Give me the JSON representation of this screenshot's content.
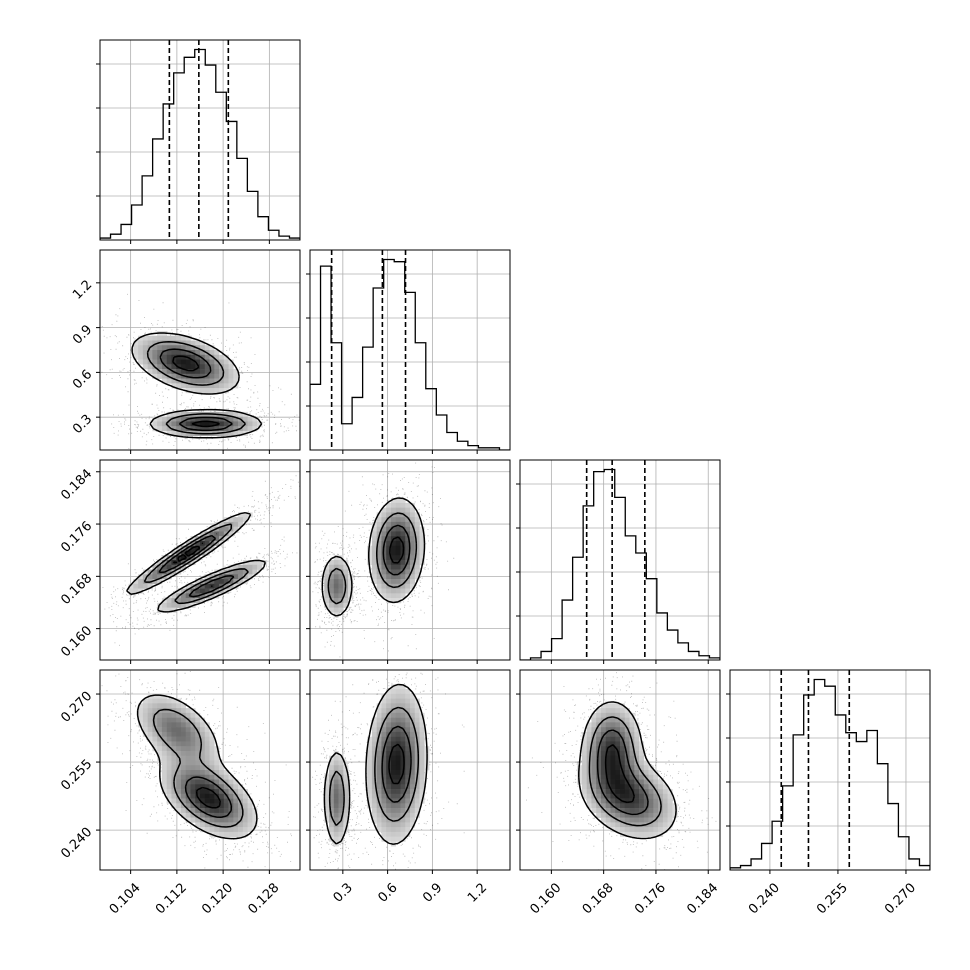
{
  "chart_data": {
    "type": "corner",
    "parameters": [
      {
        "ticks": [
          "0.104",
          "0.112",
          "0.120",
          "0.128"
        ],
        "tick_values": [
          0.104,
          0.112,
          0.12,
          0.128
        ],
        "range": [
          0.0987,
          0.1333
        ]
      },
      {
        "ticks": [
          "0.3",
          "0.6",
          "0.9",
          "1.2"
        ],
        "tick_values": [
          0.3,
          0.6,
          0.9,
          1.2
        ],
        "range": [
          0.08,
          1.42
        ]
      },
      {
        "ticks": [
          "0.160",
          "0.168",
          "0.176",
          "0.184"
        ],
        "tick_values": [
          0.16,
          0.168,
          0.176,
          0.184
        ],
        "range": [
          0.1552,
          0.1858
        ]
      },
      {
        "ticks": [
          "0.240",
          "0.255",
          "0.270"
        ],
        "tick_values": [
          0.24,
          0.255,
          0.27
        ],
        "range": [
          0.2312,
          0.2753
        ]
      }
    ],
    "quantiles": [
      [
        0.1107,
        0.1158,
        0.1209
      ],
      [
        0.225,
        0.565,
        0.72
      ],
      [
        0.1654,
        0.1693,
        0.1743
      ],
      [
        0.2425,
        0.2485,
        0.2575
      ]
    ],
    "histograms": [
      [
        1,
        3,
        8,
        18,
        33,
        52,
        70,
        86,
        94,
        98,
        90,
        76,
        61,
        42,
        25,
        12,
        5,
        2,
        1
      ],
      [
        30,
        84,
        49,
        12,
        24,
        47,
        74,
        87,
        86,
        72,
        49,
        28,
        16,
        8,
        4,
        2,
        1,
        1,
        0
      ],
      [
        0,
        1,
        4,
        10,
        28,
        48,
        72,
        88,
        89,
        76,
        58,
        50,
        38,
        22,
        14,
        8,
        4,
        2,
        1
      ],
      [
        1,
        2,
        5,
        12,
        22,
        38,
        61,
        79,
        86,
        83,
        70,
        62,
        58,
        63,
        48,
        30,
        15,
        5,
        2
      ]
    ],
    "blobs": {
      "1,0": [
        {
          "cx": 0.1135,
          "cy": 0.66,
          "sx": 0.005,
          "sy": 0.11,
          "r": -0.45,
          "w": 0.6
        },
        {
          "cx": 0.117,
          "cy": 0.255,
          "sx": 0.0052,
          "sy": 0.05,
          "r": 0,
          "w": 0.6
        }
      ],
      "2,0": [
        {
          "cx": 0.114,
          "cy": 0.1715,
          "sx": 0.0058,
          "sy": 0.0034,
          "r": 0.95,
          "w": 0.5
        },
        {
          "cx": 0.118,
          "cy": 0.1665,
          "sx": 0.0052,
          "sy": 0.0022,
          "r": 0.88,
          "w": 0.45
        }
      ],
      "2,1": [
        {
          "cx": 0.26,
          "cy": 0.1665,
          "sx": 0.06,
          "sy": 0.0028,
          "r": 0,
          "w": 0.4
        },
        {
          "cx": 0.66,
          "cy": 0.172,
          "sx": 0.1,
          "sy": 0.0043,
          "r": 0.1,
          "w": 0.6
        }
      ],
      "3,0": [
        {
          "cx": 0.112,
          "cy": 0.262,
          "sx": 0.0042,
          "sy": 0.0048,
          "r": -0.5,
          "w": 0.4
        },
        {
          "cx": 0.1175,
          "cy": 0.247,
          "sx": 0.0045,
          "sy": 0.0048,
          "r": -0.5,
          "w": 0.6
        }
      ],
      "3,1": [
        {
          "cx": 0.26,
          "cy": 0.247,
          "sx": 0.05,
          "sy": 0.0062,
          "r": 0,
          "w": 0.4
        },
        {
          "cx": 0.66,
          "cy": 0.2545,
          "sx": 0.11,
          "sy": 0.0095,
          "r": 0.1,
          "w": 0.6
        }
      ],
      "3,2": [
        {
          "cx": 0.1693,
          "cy": 0.258,
          "sx": 0.0025,
          "sy": 0.0058,
          "r": 0,
          "w": 0.5
        },
        {
          "cx": 0.172,
          "cy": 0.247,
          "sx": 0.004,
          "sy": 0.005,
          "r": -0.3,
          "w": 0.5
        }
      ]
    }
  }
}
